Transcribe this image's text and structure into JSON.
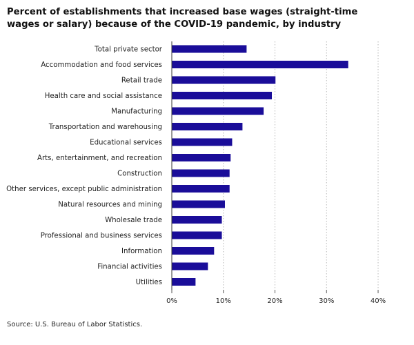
{
  "chart_data": {
    "type": "bar",
    "orientation": "horizontal",
    "title": "Percent of establishments that increased base wages (straight-time wages or salary) because of the COVID-19 pandemic, by industry",
    "source": "Source: U.S. Bureau of Labor Statistics.",
    "categories": [
      "Total private sector",
      "Accommodation and food services",
      "Retail trade",
      "Health care and social assistance",
      "Manufacturing",
      "Transportation and warehousing",
      "Educational services",
      "Arts, entertainment, and recreation",
      "Construction",
      "Other services, except public administration",
      "Natural resources and mining",
      "Wholesale trade",
      "Professional and business services",
      "Information",
      "Financial activities",
      "Utilities"
    ],
    "values": [
      14.5,
      34.2,
      20.1,
      19.4,
      17.8,
      13.7,
      11.7,
      11.4,
      11.2,
      11.2,
      10.3,
      9.7,
      9.7,
      8.2,
      7.0,
      4.6
    ],
    "xlim": [
      0,
      40
    ],
    "xticks": [
      0,
      10,
      20,
      30,
      40
    ],
    "xtick_labels": [
      "0%",
      "10%",
      "20%",
      "30%",
      "40%"
    ],
    "grid": "vertical-dotted",
    "bar_color": "#1a0d99"
  }
}
